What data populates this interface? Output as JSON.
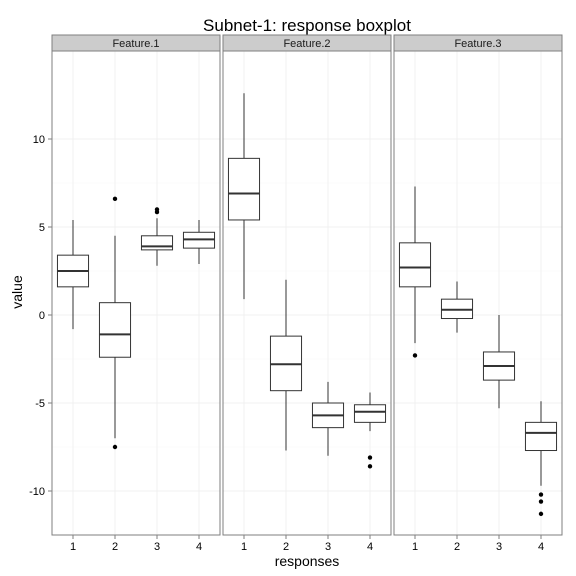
{
  "chart_data": {
    "type": "boxplot",
    "title": "Subnet-1: response boxplot",
    "xlabel": "responses",
    "ylabel": "value",
    "ylim": [
      -12.5,
      15
    ],
    "y_ticks": [
      -10,
      -5,
      0,
      5,
      10
    ],
    "y_tick_labels": [
      "-10",
      "-5",
      "0",
      "5",
      "10"
    ],
    "x_categories": [
      "1",
      "2",
      "3",
      "4"
    ],
    "grid": true,
    "facets": [
      {
        "name": "Feature.1",
        "boxes": [
          {
            "category": "1",
            "whisker_low": -0.8,
            "q1": 1.6,
            "median": 2.5,
            "q3": 3.4,
            "whisker_high": 5.4,
            "outliers": []
          },
          {
            "category": "2",
            "whisker_low": -7.0,
            "q1": -2.4,
            "median": -1.1,
            "q3": 0.7,
            "whisker_high": 4.5,
            "outliers": [
              6.6,
              -7.5
            ]
          },
          {
            "category": "3",
            "whisker_low": 2.8,
            "q1": 3.7,
            "median": 3.9,
            "q3": 4.5,
            "whisker_high": 5.5,
            "outliers": [
              5.85,
              6.0
            ]
          },
          {
            "category": "4",
            "whisker_low": 2.9,
            "q1": 3.8,
            "median": 4.3,
            "q3": 4.7,
            "whisker_high": 5.4,
            "outliers": []
          }
        ]
      },
      {
        "name": "Feature.2",
        "boxes": [
          {
            "category": "1",
            "whisker_low": 0.9,
            "q1": 5.4,
            "median": 6.9,
            "q3": 8.9,
            "whisker_high": 12.6,
            "outliers": []
          },
          {
            "category": "2",
            "whisker_low": -7.7,
            "q1": -4.3,
            "median": -2.8,
            "q3": -1.2,
            "whisker_high": 2.0,
            "outliers": []
          },
          {
            "category": "3",
            "whisker_low": -8.0,
            "q1": -6.4,
            "median": -5.7,
            "q3": -5.0,
            "whisker_high": -3.8,
            "outliers": []
          },
          {
            "category": "4",
            "whisker_low": -6.6,
            "q1": -6.1,
            "median": -5.5,
            "q3": -5.1,
            "whisker_high": -4.4,
            "outliers": [
              -8.1,
              -8.6
            ]
          }
        ]
      },
      {
        "name": "Feature.3",
        "boxes": [
          {
            "category": "1",
            "whisker_low": -1.6,
            "q1": 1.6,
            "median": 2.7,
            "q3": 4.1,
            "whisker_high": 7.3,
            "outliers": [
              -2.3
            ]
          },
          {
            "category": "2",
            "whisker_low": -1.0,
            "q1": -0.2,
            "median": 0.3,
            "q3": 0.9,
            "whisker_high": 1.9,
            "outliers": []
          },
          {
            "category": "3",
            "whisker_low": -5.3,
            "q1": -3.7,
            "median": -2.9,
            "q3": -2.1,
            "whisker_high": 0.0,
            "outliers": []
          },
          {
            "category": "4",
            "whisker_low": -9.7,
            "q1": -7.7,
            "median": -6.7,
            "q3": -6.1,
            "whisker_high": -4.9,
            "outliers": [
              -10.2,
              -10.6,
              -11.3
            ]
          }
        ]
      }
    ]
  }
}
